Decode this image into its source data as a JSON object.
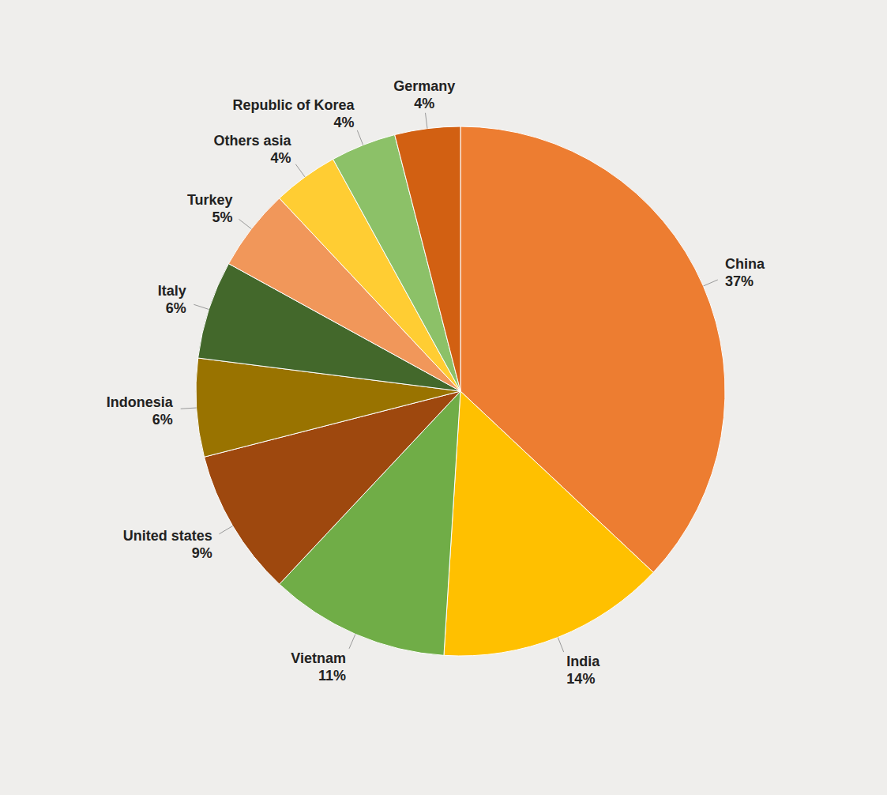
{
  "chart_data": {
    "type": "pie",
    "categories": [
      "China",
      "India",
      "Vietnam",
      "United states",
      "Indonesia",
      "Italy",
      "Turkey",
      "Others asia",
      "Republic of Korea",
      "Germany"
    ],
    "values": [
      37,
      14,
      11,
      9,
      6,
      6,
      5,
      4,
      4,
      4
    ],
    "value_labels": [
      "37%",
      "14%",
      "11%",
      "9%",
      "6%",
      "6%",
      "5%",
      "4%",
      "4%",
      "4%"
    ],
    "colors": [
      "#ED7D31",
      "#FFC000",
      "#70AD47",
      "#9E480E",
      "#997300",
      "#43682B",
      "#F1975A",
      "#FFCD33",
      "#8CC168",
      "#D26012"
    ],
    "data_labels": true
  }
}
